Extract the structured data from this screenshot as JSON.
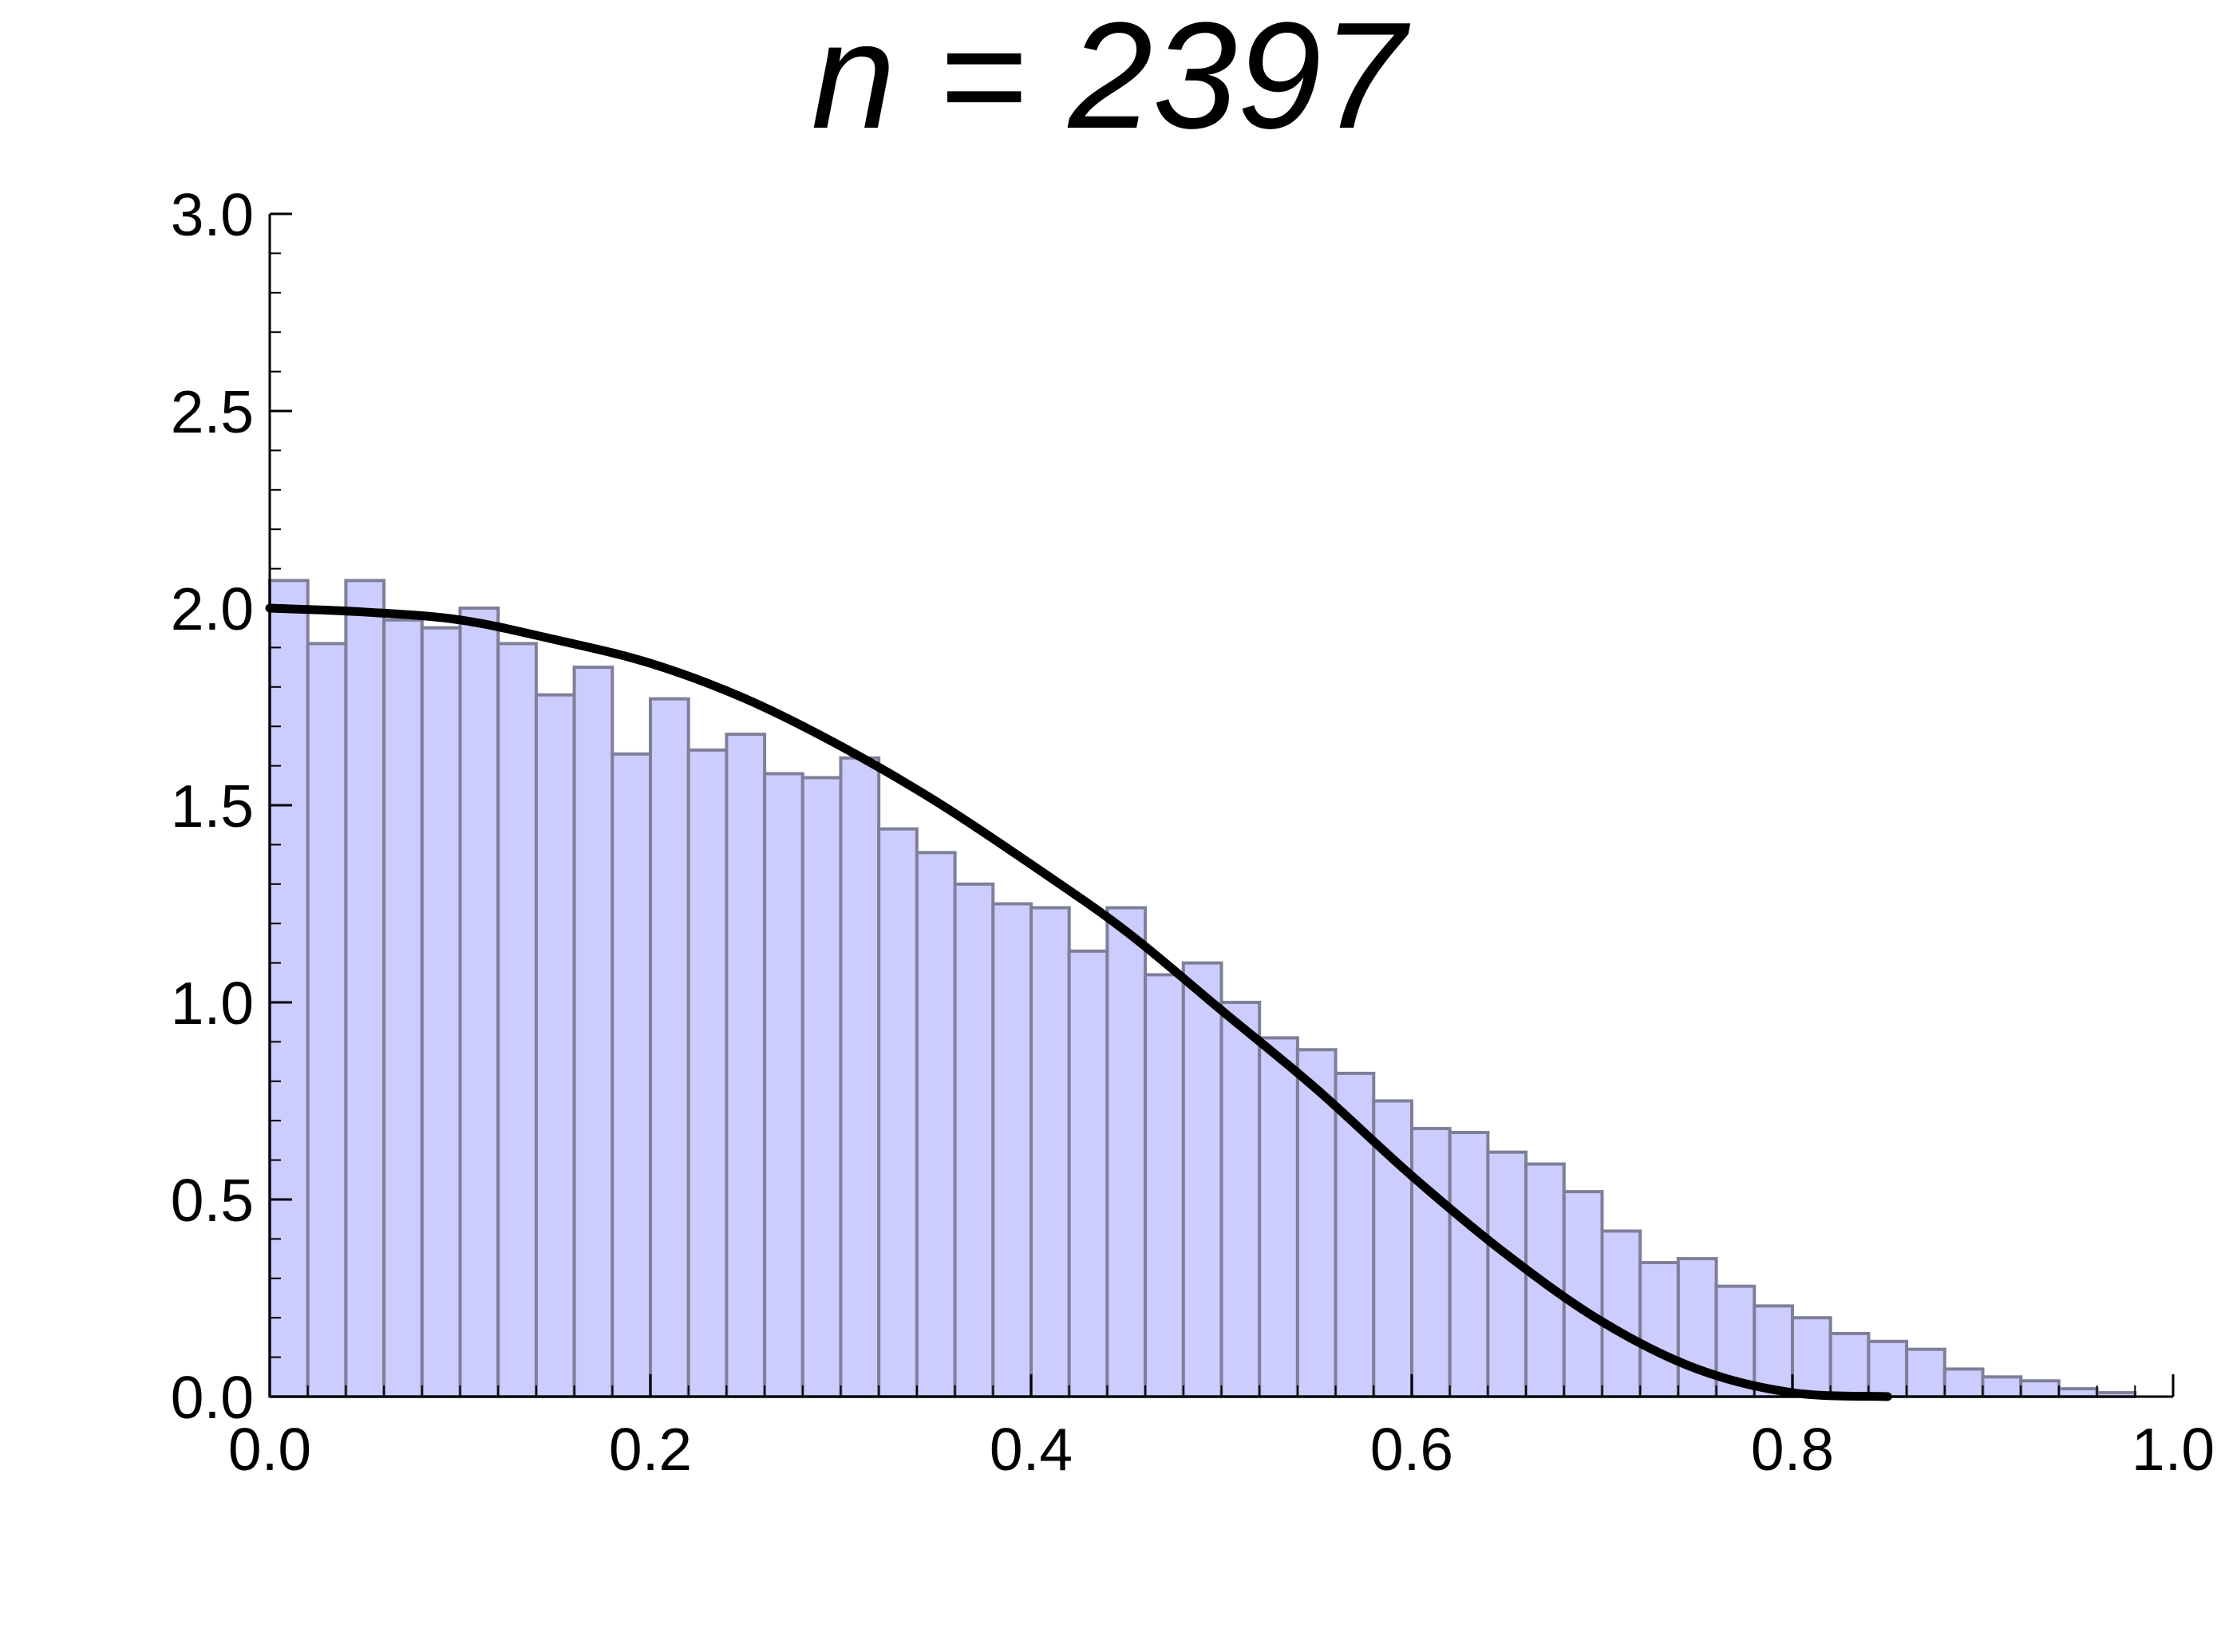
{
  "chart_data": {
    "type": "bar",
    "title": "n = 2397",
    "xlabel": "",
    "ylabel": "",
    "xlim": [
      0,
      1
    ],
    "ylim": [
      0,
      3
    ],
    "x_ticks": [
      "0.0",
      "0.2",
      "0.4",
      "0.6",
      "0.8",
      "1.0"
    ],
    "y_ticks": [
      "0.0",
      "0.5",
      "1.0",
      "1.5",
      "2.0",
      "2.5",
      "3.0"
    ],
    "bin_width": 0.02,
    "bin_starts": [
      0.0,
      0.02,
      0.04,
      0.06,
      0.08,
      0.1,
      0.12,
      0.14,
      0.16,
      0.18,
      0.2,
      0.22,
      0.24,
      0.26,
      0.28,
      0.3,
      0.32,
      0.34,
      0.36,
      0.38,
      0.4,
      0.42,
      0.44,
      0.46,
      0.48,
      0.5,
      0.52,
      0.54,
      0.56,
      0.58,
      0.6,
      0.62,
      0.64,
      0.66,
      0.68,
      0.7,
      0.72,
      0.74,
      0.76,
      0.78,
      0.8,
      0.82,
      0.84,
      0.86,
      0.88,
      0.9,
      0.92,
      0.94,
      0.96
    ],
    "values": [
      2.07,
      1.91,
      2.07,
      1.97,
      1.95,
      2.0,
      1.91,
      1.78,
      1.85,
      1.63,
      1.77,
      1.64,
      1.68,
      1.58,
      1.57,
      1.62,
      1.44,
      1.38,
      1.3,
      1.25,
      1.24,
      1.13,
      1.24,
      1.07,
      1.1,
      1.0,
      0.91,
      0.88,
      0.82,
      0.75,
      0.68,
      0.67,
      0.62,
      0.59,
      0.52,
      0.42,
      0.34,
      0.35,
      0.28,
      0.23,
      0.2,
      0.16,
      0.14,
      0.12,
      0.07,
      0.05,
      0.04,
      0.02,
      0.01
    ],
    "curve": {
      "x": [
        0.0,
        0.05,
        0.1,
        0.15,
        0.2,
        0.25,
        0.3,
        0.35,
        0.4,
        0.45,
        0.5,
        0.55,
        0.6,
        0.65,
        0.7,
        0.75,
        0.8,
        0.85
      ],
      "y": [
        2.0,
        1.99,
        1.97,
        1.92,
        1.86,
        1.77,
        1.65,
        1.51,
        1.35,
        1.18,
        0.98,
        0.78,
        0.56,
        0.36,
        0.19,
        0.07,
        0.01,
        0.0
      ]
    },
    "grid": false,
    "colors": {
      "bar_fill": "#ccccff",
      "bar_stroke": "#7f7f99",
      "curve": "#000000",
      "axis": "#000000"
    }
  }
}
